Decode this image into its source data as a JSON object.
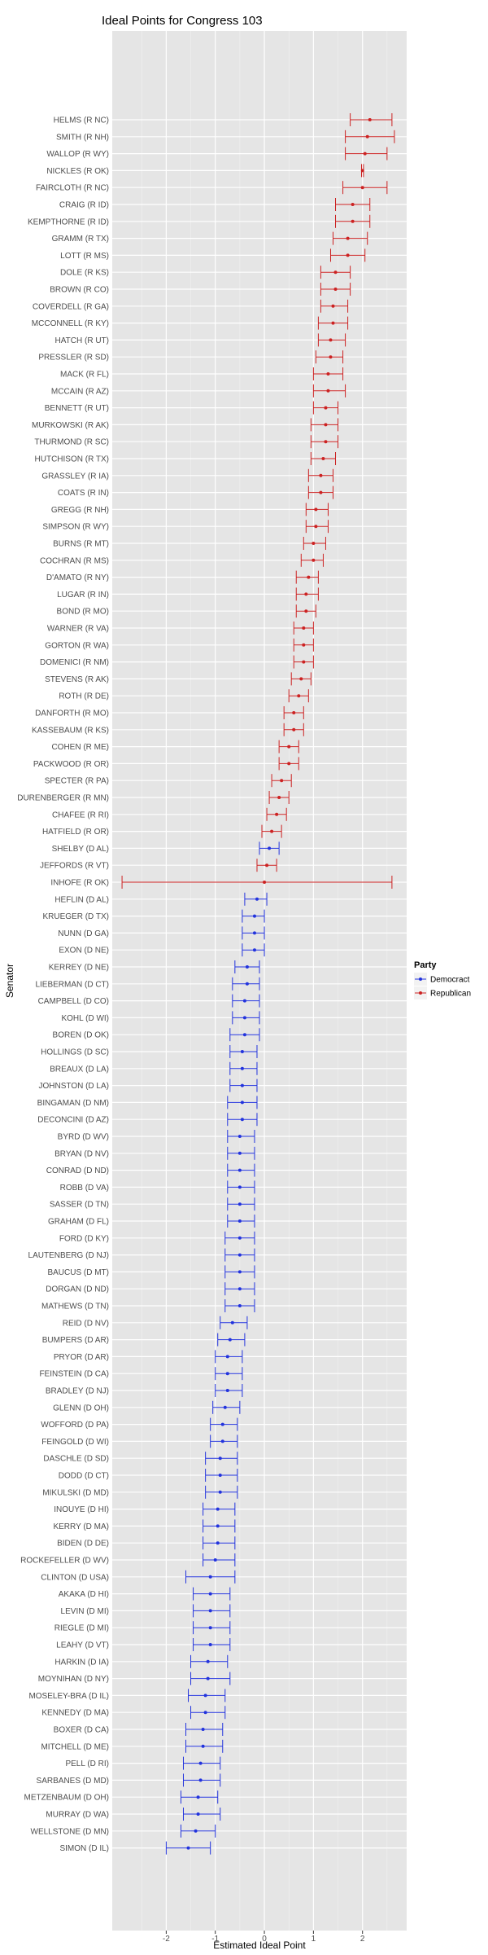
{
  "chart_data": {
    "type": "dot-errorbar",
    "title": "Ideal Points for Congress 103",
    "xlabel": "Estimated Ideal Point",
    "ylabel": "Senator",
    "xlim": [
      -3.1,
      2.9
    ],
    "xticks": [
      -2,
      -1,
      0,
      1,
      2
    ],
    "xtick_labels": [
      "-2",
      "-1",
      "0",
      "1",
      "2"
    ],
    "grid": true,
    "legend": {
      "title": "Party",
      "position": "right",
      "items": [
        {
          "label": "Democract",
          "color": "#2233dd"
        },
        {
          "label": "Republican",
          "color": "#cc2222"
        }
      ]
    },
    "colors": {
      "D": "#2233dd",
      "R": "#cc2222"
    },
    "points": [
      {
        "label": "HELMS (R NC)",
        "party": "R",
        "x": 2.15,
        "lo": 1.75,
        "hi": 2.6
      },
      {
        "label": "SMITH (R NH)",
        "party": "R",
        "x": 2.1,
        "lo": 1.65,
        "hi": 2.65
      },
      {
        "label": "WALLOP (R WY)",
        "party": "R",
        "x": 2.05,
        "lo": 1.65,
        "hi": 2.5
      },
      {
        "label": "NICKLES (R OK)",
        "party": "R",
        "x": 2.0,
        "lo": 1.98,
        "hi": 2.02
      },
      {
        "label": "FAIRCLOTH (R NC)",
        "party": "R",
        "x": 2.0,
        "lo": 1.6,
        "hi": 2.5
      },
      {
        "label": "CRAIG (R ID)",
        "party": "R",
        "x": 1.8,
        "lo": 1.45,
        "hi": 2.15
      },
      {
        "label": "KEMPTHORNE (R ID)",
        "party": "R",
        "x": 1.8,
        "lo": 1.45,
        "hi": 2.15
      },
      {
        "label": "GRAMM (R TX)",
        "party": "R",
        "x": 1.7,
        "lo": 1.4,
        "hi": 2.1
      },
      {
        "label": "LOTT (R MS)",
        "party": "R",
        "x": 1.7,
        "lo": 1.35,
        "hi": 2.05
      },
      {
        "label": "DOLE (R KS)",
        "party": "R",
        "x": 1.45,
        "lo": 1.15,
        "hi": 1.75
      },
      {
        "label": "BROWN (R CO)",
        "party": "R",
        "x": 1.45,
        "lo": 1.15,
        "hi": 1.75
      },
      {
        "label": "COVERDELL (R GA)",
        "party": "R",
        "x": 1.4,
        "lo": 1.15,
        "hi": 1.7
      },
      {
        "label": "MCCONNELL (R KY)",
        "party": "R",
        "x": 1.4,
        "lo": 1.1,
        "hi": 1.7
      },
      {
        "label": "HATCH (R UT)",
        "party": "R",
        "x": 1.35,
        "lo": 1.1,
        "hi": 1.65
      },
      {
        "label": "PRESSLER (R SD)",
        "party": "R",
        "x": 1.35,
        "lo": 1.05,
        "hi": 1.6
      },
      {
        "label": "MACK (R FL)",
        "party": "R",
        "x": 1.3,
        "lo": 1.0,
        "hi": 1.6
      },
      {
        "label": "MCCAIN (R AZ)",
        "party": "R",
        "x": 1.3,
        "lo": 1.0,
        "hi": 1.65
      },
      {
        "label": "BENNETT (R UT)",
        "party": "R",
        "x": 1.25,
        "lo": 1.0,
        "hi": 1.5
      },
      {
        "label": "MURKOWSKI (R AK)",
        "party": "R",
        "x": 1.25,
        "lo": 0.95,
        "hi": 1.5
      },
      {
        "label": "THURMOND (R SC)",
        "party": "R",
        "x": 1.25,
        "lo": 0.95,
        "hi": 1.5
      },
      {
        "label": "HUTCHISON (R TX)",
        "party": "R",
        "x": 1.2,
        "lo": 0.95,
        "hi": 1.45
      },
      {
        "label": "GRASSLEY (R IA)",
        "party": "R",
        "x": 1.15,
        "lo": 0.9,
        "hi": 1.4
      },
      {
        "label": "COATS (R IN)",
        "party": "R",
        "x": 1.15,
        "lo": 0.9,
        "hi": 1.4
      },
      {
        "label": "GREGG (R NH)",
        "party": "R",
        "x": 1.05,
        "lo": 0.85,
        "hi": 1.3
      },
      {
        "label": "SIMPSON (R WY)",
        "party": "R",
        "x": 1.05,
        "lo": 0.85,
        "hi": 1.3
      },
      {
        "label": "BURNS (R MT)",
        "party": "R",
        "x": 1.0,
        "lo": 0.8,
        "hi": 1.25
      },
      {
        "label": "COCHRAN (R MS)",
        "party": "R",
        "x": 1.0,
        "lo": 0.75,
        "hi": 1.2
      },
      {
        "label": "D'AMATO (R NY)",
        "party": "R",
        "x": 0.9,
        "lo": 0.65,
        "hi": 1.1
      },
      {
        "label": "LUGAR (R IN)",
        "party": "R",
        "x": 0.85,
        "lo": 0.65,
        "hi": 1.1
      },
      {
        "label": "BOND (R MO)",
        "party": "R",
        "x": 0.85,
        "lo": 0.65,
        "hi": 1.05
      },
      {
        "label": "WARNER (R VA)",
        "party": "R",
        "x": 0.8,
        "lo": 0.6,
        "hi": 1.0
      },
      {
        "label": "GORTON (R WA)",
        "party": "R",
        "x": 0.8,
        "lo": 0.6,
        "hi": 1.0
      },
      {
        "label": "DOMENICI (R NM)",
        "party": "R",
        "x": 0.8,
        "lo": 0.6,
        "hi": 1.0
      },
      {
        "label": "STEVENS (R AK)",
        "party": "R",
        "x": 0.75,
        "lo": 0.55,
        "hi": 0.95
      },
      {
        "label": "ROTH (R DE)",
        "party": "R",
        "x": 0.7,
        "lo": 0.5,
        "hi": 0.9
      },
      {
        "label": "DANFORTH (R MO)",
        "party": "R",
        "x": 0.6,
        "lo": 0.4,
        "hi": 0.8
      },
      {
        "label": "KASSEBAUM (R KS)",
        "party": "R",
        "x": 0.6,
        "lo": 0.4,
        "hi": 0.8
      },
      {
        "label": "COHEN (R ME)",
        "party": "R",
        "x": 0.5,
        "lo": 0.3,
        "hi": 0.7
      },
      {
        "label": "PACKWOOD (R OR)",
        "party": "R",
        "x": 0.5,
        "lo": 0.3,
        "hi": 0.7
      },
      {
        "label": "SPECTER (R PA)",
        "party": "R",
        "x": 0.35,
        "lo": 0.15,
        "hi": 0.55
      },
      {
        "label": "DURENBERGER (R MN)",
        "party": "R",
        "x": 0.3,
        "lo": 0.1,
        "hi": 0.5
      },
      {
        "label": "CHAFEE (R RI)",
        "party": "R",
        "x": 0.25,
        "lo": 0.05,
        "hi": 0.45
      },
      {
        "label": "HATFIELD (R OR)",
        "party": "R",
        "x": 0.15,
        "lo": -0.05,
        "hi": 0.35
      },
      {
        "label": "SHELBY (D AL)",
        "party": "D",
        "x": 0.1,
        "lo": -0.1,
        "hi": 0.3
      },
      {
        "label": "JEFFORDS (R VT)",
        "party": "R",
        "x": 0.05,
        "lo": -0.15,
        "hi": 0.25
      },
      {
        "label": "INHOFE (R OK)",
        "party": "R",
        "x": 0.0,
        "lo": -2.9,
        "hi": 2.6
      },
      {
        "label": "HEFLIN (D AL)",
        "party": "D",
        "x": -0.15,
        "lo": -0.4,
        "hi": 0.05
      },
      {
        "label": "KRUEGER (D TX)",
        "party": "D",
        "x": -0.2,
        "lo": -0.45,
        "hi": 0.0
      },
      {
        "label": "NUNN (D GA)",
        "party": "D",
        "x": -0.2,
        "lo": -0.45,
        "hi": 0.0
      },
      {
        "label": "EXON (D NE)",
        "party": "D",
        "x": -0.2,
        "lo": -0.45,
        "hi": 0.0
      },
      {
        "label": "KERREY (D NE)",
        "party": "D",
        "x": -0.35,
        "lo": -0.6,
        "hi": -0.1
      },
      {
        "label": "LIEBERMAN (D CT)",
        "party": "D",
        "x": -0.35,
        "lo": -0.65,
        "hi": -0.1
      },
      {
        "label": "CAMPBELL (D CO)",
        "party": "D",
        "x": -0.4,
        "lo": -0.65,
        "hi": -0.1
      },
      {
        "label": "KOHL (D WI)",
        "party": "D",
        "x": -0.4,
        "lo": -0.65,
        "hi": -0.1
      },
      {
        "label": "BOREN (D OK)",
        "party": "D",
        "x": -0.4,
        "lo": -0.7,
        "hi": -0.1
      },
      {
        "label": "HOLLINGS (D SC)",
        "party": "D",
        "x": -0.45,
        "lo": -0.7,
        "hi": -0.15
      },
      {
        "label": "BREAUX (D LA)",
        "party": "D",
        "x": -0.45,
        "lo": -0.7,
        "hi": -0.15
      },
      {
        "label": "JOHNSTON (D LA)",
        "party": "D",
        "x": -0.45,
        "lo": -0.7,
        "hi": -0.15
      },
      {
        "label": "BINGAMAN (D NM)",
        "party": "D",
        "x": -0.45,
        "lo": -0.75,
        "hi": -0.15
      },
      {
        "label": "DECONCINI (D AZ)",
        "party": "D",
        "x": -0.45,
        "lo": -0.75,
        "hi": -0.15
      },
      {
        "label": "BYRD (D WV)",
        "party": "D",
        "x": -0.5,
        "lo": -0.75,
        "hi": -0.2
      },
      {
        "label": "BRYAN (D NV)",
        "party": "D",
        "x": -0.5,
        "lo": -0.75,
        "hi": -0.2
      },
      {
        "label": "CONRAD (D ND)",
        "party": "D",
        "x": -0.5,
        "lo": -0.75,
        "hi": -0.2
      },
      {
        "label": "ROBB (D VA)",
        "party": "D",
        "x": -0.5,
        "lo": -0.75,
        "hi": -0.2
      },
      {
        "label": "SASSER (D TN)",
        "party": "D",
        "x": -0.5,
        "lo": -0.75,
        "hi": -0.2
      },
      {
        "label": "GRAHAM (D FL)",
        "party": "D",
        "x": -0.5,
        "lo": -0.75,
        "hi": -0.2
      },
      {
        "label": "FORD (D KY)",
        "party": "D",
        "x": -0.5,
        "lo": -0.8,
        "hi": -0.2
      },
      {
        "label": "LAUTENBERG (D NJ)",
        "party": "D",
        "x": -0.5,
        "lo": -0.8,
        "hi": -0.2
      },
      {
        "label": "BAUCUS (D MT)",
        "party": "D",
        "x": -0.5,
        "lo": -0.8,
        "hi": -0.2
      },
      {
        "label": "DORGAN (D ND)",
        "party": "D",
        "x": -0.5,
        "lo": -0.8,
        "hi": -0.2
      },
      {
        "label": "MATHEWS (D TN)",
        "party": "D",
        "x": -0.5,
        "lo": -0.8,
        "hi": -0.2
      },
      {
        "label": "REID (D NV)",
        "party": "D",
        "x": -0.65,
        "lo": -0.9,
        "hi": -0.35
      },
      {
        "label": "BUMPERS (D AR)",
        "party": "D",
        "x": -0.7,
        "lo": -0.95,
        "hi": -0.4
      },
      {
        "label": "PRYOR (D AR)",
        "party": "D",
        "x": -0.75,
        "lo": -1.0,
        "hi": -0.45
      },
      {
        "label": "FEINSTEIN (D CA)",
        "party": "D",
        "x": -0.75,
        "lo": -1.0,
        "hi": -0.45
      },
      {
        "label": "BRADLEY (D NJ)",
        "party": "D",
        "x": -0.75,
        "lo": -1.0,
        "hi": -0.45
      },
      {
        "label": "GLENN (D OH)",
        "party": "D",
        "x": -0.8,
        "lo": -1.05,
        "hi": -0.5
      },
      {
        "label": "WOFFORD (D PA)",
        "party": "D",
        "x": -0.85,
        "lo": -1.1,
        "hi": -0.55
      },
      {
        "label": "FEINGOLD (D WI)",
        "party": "D",
        "x": -0.85,
        "lo": -1.1,
        "hi": -0.55
      },
      {
        "label": "DASCHLE (D SD)",
        "party": "D",
        "x": -0.9,
        "lo": -1.2,
        "hi": -0.55
      },
      {
        "label": "DODD (D CT)",
        "party": "D",
        "x": -0.9,
        "lo": -1.2,
        "hi": -0.55
      },
      {
        "label": "MIKULSKI (D MD)",
        "party": "D",
        "x": -0.9,
        "lo": -1.2,
        "hi": -0.55
      },
      {
        "label": "INOUYE (D HI)",
        "party": "D",
        "x": -0.95,
        "lo": -1.25,
        "hi": -0.6
      },
      {
        "label": "KERRY (D MA)",
        "party": "D",
        "x": -0.95,
        "lo": -1.25,
        "hi": -0.6
      },
      {
        "label": "BIDEN (D DE)",
        "party": "D",
        "x": -0.95,
        "lo": -1.25,
        "hi": -0.6
      },
      {
        "label": "ROCKEFELLER (D WV)",
        "party": "D",
        "x": -1.0,
        "lo": -1.25,
        "hi": -0.6
      },
      {
        "label": "CLINTON (D USA)",
        "party": "D",
        "x": -1.1,
        "lo": -1.6,
        "hi": -0.6
      },
      {
        "label": "AKAKA (D HI)",
        "party": "D",
        "x": -1.1,
        "lo": -1.45,
        "hi": -0.7
      },
      {
        "label": "LEVIN (D MI)",
        "party": "D",
        "x": -1.1,
        "lo": -1.45,
        "hi": -0.7
      },
      {
        "label": "RIEGLE (D MI)",
        "party": "D",
        "x": -1.1,
        "lo": -1.45,
        "hi": -0.7
      },
      {
        "label": "LEAHY (D VT)",
        "party": "D",
        "x": -1.1,
        "lo": -1.45,
        "hi": -0.7
      },
      {
        "label": "HARKIN (D IA)",
        "party": "D",
        "x": -1.15,
        "lo": -1.5,
        "hi": -0.75
      },
      {
        "label": "MOYNIHAN (D NY)",
        "party": "D",
        "x": -1.15,
        "lo": -1.5,
        "hi": -0.7
      },
      {
        "label": "MOSELEY-BRA (D IL)",
        "party": "D",
        "x": -1.2,
        "lo": -1.55,
        "hi": -0.8
      },
      {
        "label": "KENNEDY (D MA)",
        "party": "D",
        "x": -1.2,
        "lo": -1.5,
        "hi": -0.8
      },
      {
        "label": "BOXER (D CA)",
        "party": "D",
        "x": -1.25,
        "lo": -1.6,
        "hi": -0.85
      },
      {
        "label": "MITCHELL (D ME)",
        "party": "D",
        "x": -1.25,
        "lo": -1.6,
        "hi": -0.85
      },
      {
        "label": "PELL (D RI)",
        "party": "D",
        "x": -1.3,
        "lo": -1.65,
        "hi": -0.9
      },
      {
        "label": "SARBANES (D MD)",
        "party": "D",
        "x": -1.3,
        "lo": -1.65,
        "hi": -0.9
      },
      {
        "label": "METZENBAUM (D OH)",
        "party": "D",
        "x": -1.35,
        "lo": -1.7,
        "hi": -0.95
      },
      {
        "label": "MURRAY (D WA)",
        "party": "D",
        "x": -1.35,
        "lo": -1.65,
        "hi": -0.9
      },
      {
        "label": "WELLSTONE (D MN)",
        "party": "D",
        "x": -1.4,
        "lo": -1.7,
        "hi": -1.0
      },
      {
        "label": "SIMON (D IL)",
        "party": "D",
        "x": -1.55,
        "lo": -2.0,
        "hi": -1.1
      }
    ]
  }
}
